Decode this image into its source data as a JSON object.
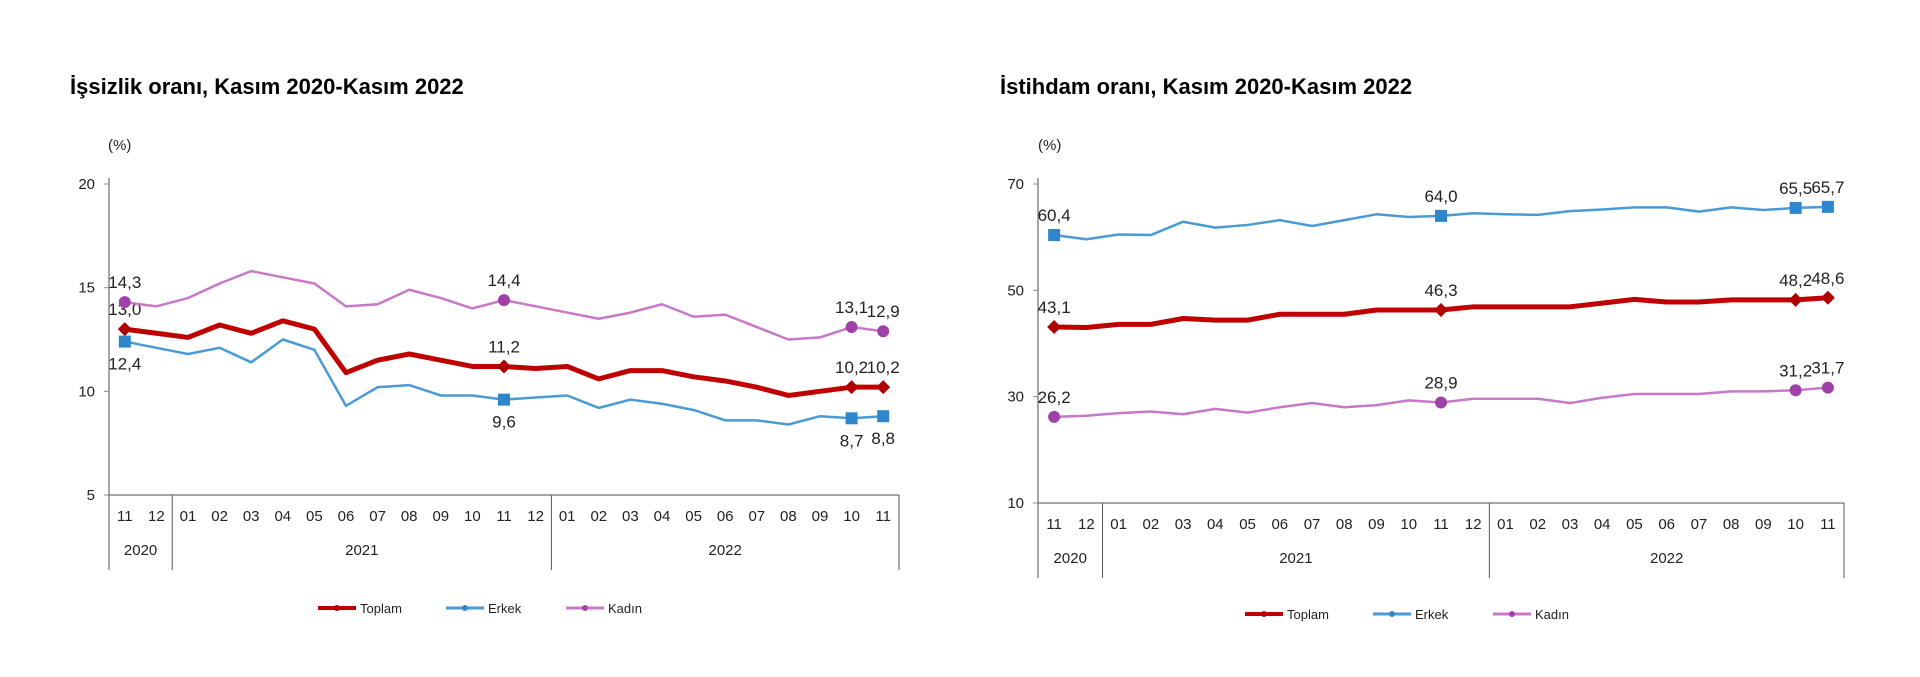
{
  "chart_data": [
    {
      "type": "line",
      "title": "İşsizlik oranı, Kasım 2020-Kasım 2022",
      "ylabel": "(%)",
      "ylim": [
        5,
        20
      ],
      "yticks": [
        "5",
        "10",
        "15",
        "20"
      ],
      "ytick_values": [
        5,
        10,
        15,
        20
      ],
      "categories": [
        "11",
        "12",
        "01",
        "02",
        "03",
        "04",
        "05",
        "06",
        "07",
        "08",
        "09",
        "10",
        "11",
        "12",
        "01",
        "02",
        "03",
        "04",
        "05",
        "06",
        "07",
        "08",
        "09",
        "10",
        "11"
      ],
      "year_groups": [
        {
          "label": "2020",
          "count": 2
        },
        {
          "label": "2021",
          "count": 12
        },
        {
          "label": "2022",
          "count": 11
        }
      ],
      "grid": false,
      "legend_placement": "bottom",
      "series": [
        {
          "name": "Toplam",
          "color": "#c00000",
          "marker": "diamond",
          "values": [
            13.0,
            12.8,
            12.6,
            13.2,
            12.8,
            13.4,
            13.0,
            10.9,
            11.5,
            11.8,
            11.5,
            11.2,
            11.2,
            11.1,
            11.2,
            10.6,
            11.0,
            11.0,
            10.7,
            10.5,
            10.2,
            9.8,
            10.0,
            10.2,
            10.2
          ],
          "data_labels": [
            {
              "index": 0,
              "text": "13,0",
              "pos": "above"
            },
            {
              "index": 12,
              "text": "11,2",
              "pos": "above"
            },
            {
              "index": 23,
              "text": "10,2",
              "pos": "above"
            },
            {
              "index": 24,
              "text": "10,2",
              "pos": "above"
            }
          ]
        },
        {
          "name": "Erkek",
          "color": "#4a9ad6",
          "marker": "square",
          "values": [
            12.4,
            12.1,
            11.8,
            12.1,
            11.4,
            12.5,
            12.0,
            9.3,
            10.2,
            10.3,
            9.8,
            9.8,
            9.6,
            9.7,
            9.8,
            9.2,
            9.6,
            9.4,
            9.1,
            8.6,
            8.6,
            8.4,
            8.8,
            8.7,
            8.8
          ],
          "data_labels": [
            {
              "index": 0,
              "text": "12,4",
              "pos": "below"
            },
            {
              "index": 12,
              "text": "9,6",
              "pos": "below"
            },
            {
              "index": 23,
              "text": "8,7",
              "pos": "below"
            },
            {
              "index": 24,
              "text": "8,8",
              "pos": "below"
            }
          ]
        },
        {
          "name": "Kadın",
          "color": "#c878c8",
          "marker": "circle",
          "values": [
            14.3,
            14.1,
            14.5,
            15.2,
            15.8,
            15.5,
            15.2,
            14.1,
            14.2,
            14.9,
            14.5,
            14.0,
            14.4,
            14.1,
            13.8,
            13.5,
            13.8,
            14.2,
            13.6,
            13.7,
            13.1,
            12.5,
            12.6,
            13.1,
            12.9
          ],
          "data_labels": [
            {
              "index": 0,
              "text": "14,3",
              "pos": "above"
            },
            {
              "index": 12,
              "text": "14,4",
              "pos": "above"
            },
            {
              "index": 23,
              "text": "13,1",
              "pos": "above"
            },
            {
              "index": 24,
              "text": "12,9",
              "pos": "above"
            }
          ]
        }
      ]
    },
    {
      "type": "line",
      "title": "İstihdam oranı, Kasım 2020-Kasım 2022",
      "ylabel": "(%)",
      "ylim": [
        10,
        70
      ],
      "yticks": [
        "10",
        "30",
        "50",
        "70"
      ],
      "ytick_values": [
        10,
        30,
        50,
        70
      ],
      "categories": [
        "11",
        "12",
        "01",
        "02",
        "03",
        "04",
        "05",
        "06",
        "07",
        "08",
        "09",
        "10",
        "11",
        "12",
        "01",
        "02",
        "03",
        "04",
        "05",
        "06",
        "07",
        "08",
        "09",
        "10",
        "11"
      ],
      "year_groups": [
        {
          "label": "2020",
          "count": 2
        },
        {
          "label": "2021",
          "count": 12
        },
        {
          "label": "2022",
          "count": 11
        }
      ],
      "grid": false,
      "legend_placement": "bottom",
      "series": [
        {
          "name": "Toplam",
          "color": "#c00000",
          "marker": "diamond",
          "values": [
            43.1,
            43.0,
            43.6,
            43.6,
            44.7,
            44.4,
            44.4,
            45.5,
            45.5,
            45.5,
            46.3,
            46.3,
            46.3,
            46.9,
            46.9,
            46.9,
            46.9,
            47.6,
            48.3,
            47.8,
            47.8,
            48.2,
            48.2,
            48.2,
            48.6
          ],
          "data_labels": [
            {
              "index": 0,
              "text": "43,1",
              "pos": "above"
            },
            {
              "index": 12,
              "text": "46,3",
              "pos": "above"
            },
            {
              "index": 23,
              "text": "48,2",
              "pos": "above"
            },
            {
              "index": 24,
              "text": "48,6",
              "pos": "above"
            }
          ]
        },
        {
          "name": "Erkek",
          "color": "#4a9ad6",
          "marker": "square",
          "values": [
            60.4,
            59.6,
            60.5,
            60.4,
            62.9,
            61.8,
            62.3,
            63.2,
            62.1,
            63.2,
            64.3,
            63.8,
            64.0,
            64.5,
            64.3,
            64.2,
            64.9,
            65.2,
            65.6,
            65.6,
            64.8,
            65.6,
            65.1,
            65.5,
            65.7
          ],
          "data_labels": [
            {
              "index": 0,
              "text": "60,4",
              "pos": "above"
            },
            {
              "index": 12,
              "text": "64,0",
              "pos": "above"
            },
            {
              "index": 23,
              "text": "65,5",
              "pos": "above"
            },
            {
              "index": 24,
              "text": "65,7",
              "pos": "above"
            }
          ]
        },
        {
          "name": "Kadın",
          "color": "#c878c8",
          "marker": "circle",
          "values": [
            26.2,
            26.4,
            26.9,
            27.2,
            26.7,
            27.7,
            27.0,
            28.0,
            28.8,
            28.0,
            28.4,
            29.3,
            28.9,
            29.6,
            29.6,
            29.6,
            28.8,
            29.8,
            30.5,
            30.5,
            30.5,
            31.0,
            31.0,
            31.2,
            31.7
          ],
          "data_labels": [
            {
              "index": 0,
              "text": "26,2",
              "pos": "above"
            },
            {
              "index": 12,
              "text": "28,9",
              "pos": "above"
            },
            {
              "index": 23,
              "text": "31,2",
              "pos": "above"
            },
            {
              "index": 24,
              "text": "31,7",
              "pos": "above"
            }
          ]
        }
      ]
    }
  ]
}
